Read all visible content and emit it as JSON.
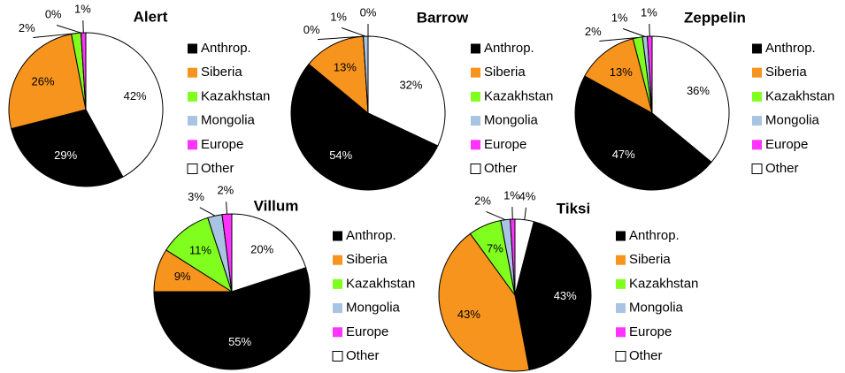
{
  "chart_data": [
    {
      "type": "pie",
      "title": "Alert",
      "categories": [
        "Anthrop.",
        "Siberia",
        "Kazakhstan",
        "Mongolia",
        "Europe",
        "Other"
      ],
      "values": [
        29,
        26,
        2,
        0,
        1,
        42
      ],
      "value_labels": [
        "29%",
        "26%",
        "2%",
        "0%",
        "1%",
        "42%"
      ],
      "colors": [
        "#000000",
        "#f7941d",
        "#80ff1f",
        "#a9c3e3",
        "#ff33ff",
        "#ffffff"
      ]
    },
    {
      "type": "pie",
      "title": "Barrow",
      "categories": [
        "Anthrop.",
        "Siberia",
        "Kazakhstan",
        "Mongolia",
        "Europe",
        "Other"
      ],
      "values": [
        54,
        13,
        0,
        1,
        0,
        32
      ],
      "value_labels": [
        "54%",
        "13%",
        "0%",
        "1%",
        "0%",
        "32%"
      ],
      "colors": [
        "#000000",
        "#f7941d",
        "#80ff1f",
        "#a9c3e3",
        "#ff33ff",
        "#ffffff"
      ]
    },
    {
      "type": "pie",
      "title": "Zeppelin",
      "categories": [
        "Anthrop.",
        "Siberia",
        "Kazakhstan",
        "Mongolia",
        "Europe",
        "Other"
      ],
      "values": [
        47,
        13,
        2,
        1,
        1,
        36
      ],
      "value_labels": [
        "47%",
        "13%",
        "2%",
        "1%",
        "1%",
        "36%"
      ],
      "colors": [
        "#000000",
        "#f7941d",
        "#80ff1f",
        "#a9c3e3",
        "#ff33ff",
        "#ffffff"
      ]
    },
    {
      "type": "pie",
      "title": "Villum",
      "categories": [
        "Anthrop.",
        "Siberia",
        "Kazakhstan",
        "Mongolia",
        "Europe",
        "Other"
      ],
      "values": [
        55,
        9,
        11,
        3,
        2,
        20
      ],
      "value_labels": [
        "55%",
        "9%",
        "11%",
        "3%",
        "2%",
        "20%"
      ],
      "colors": [
        "#000000",
        "#f7941d",
        "#80ff1f",
        "#a9c3e3",
        "#ff33ff",
        "#ffffff"
      ]
    },
    {
      "type": "pie",
      "title": "Tiksi",
      "categories": [
        "Anthrop.",
        "Siberia",
        "Kazakhstan",
        "Mongolia",
        "Europe",
        "Other"
      ],
      "values": [
        43,
        43,
        7,
        2,
        1,
        4
      ],
      "value_labels": [
        "43%",
        "43%",
        "7%",
        "2%",
        "1%",
        "4%"
      ],
      "colors": [
        "#000000",
        "#f7941d",
        "#80ff1f",
        "#a9c3e3",
        "#ff33ff",
        "#ffffff"
      ]
    }
  ]
}
